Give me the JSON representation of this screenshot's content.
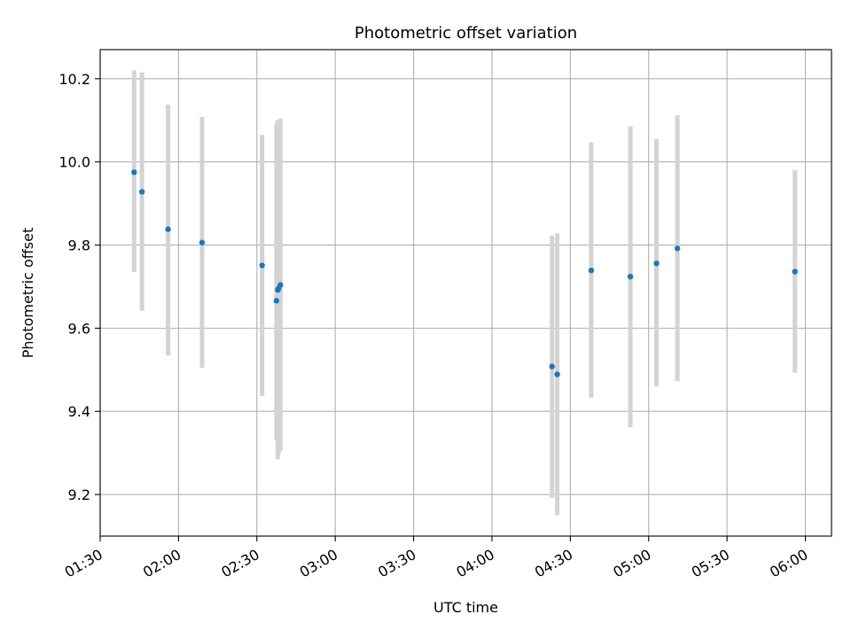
{
  "chart_data": {
    "type": "scatter",
    "title": "Photometric offset variation",
    "xlabel": "UTC time",
    "ylabel": "Photometric offset",
    "x_axis_kind": "time",
    "xlim": [
      "01:30",
      "06:10"
    ],
    "ylim": [
      9.1,
      10.27
    ],
    "grid": true,
    "marker_color": "#1f77b4",
    "errorbar_color": "#d3d3d3",
    "x_ticks": [
      "01:30",
      "02:00",
      "02:30",
      "03:00",
      "03:30",
      "04:00",
      "04:30",
      "05:00",
      "05:30",
      "06:00"
    ],
    "y_ticks": [
      9.2,
      9.4,
      9.6,
      9.8,
      10.0,
      10.2
    ],
    "y_tick_labels": [
      "9.2",
      "9.4",
      "9.6",
      "9.8",
      "10.0",
      "10.2"
    ],
    "points": [
      {
        "x": "01:43",
        "y": 9.975,
        "low": 9.735,
        "high": 10.22
      },
      {
        "x": "01:46",
        "y": 9.928,
        "low": 9.642,
        "high": 10.215
      },
      {
        "x": "01:56",
        "y": 9.838,
        "low": 9.535,
        "high": 10.138
      },
      {
        "x": "02:09",
        "y": 9.806,
        "low": 9.505,
        "high": 10.108
      },
      {
        "x": "02:32",
        "y": 9.751,
        "low": 9.437,
        "high": 10.065
      },
      {
        "x": "02:37.5",
        "y": 9.666,
        "low": 9.33,
        "high": 10.092
      },
      {
        "x": "02:38",
        "y": 9.692,
        "low": 9.285,
        "high": 10.1
      },
      {
        "x": "02:38.3",
        "y": 9.695,
        "low": 9.296,
        "high": 10.096
      },
      {
        "x": "02:39",
        "y": 9.704,
        "low": 9.305,
        "high": 10.104
      },
      {
        "x": "04:23",
        "y": 9.508,
        "low": 9.192,
        "high": 9.823
      },
      {
        "x": "04:25",
        "y": 9.489,
        "low": 9.15,
        "high": 9.828
      },
      {
        "x": "04:38",
        "y": 9.739,
        "low": 9.433,
        "high": 10.047
      },
      {
        "x": "04:53",
        "y": 9.724,
        "low": 9.362,
        "high": 10.086
      },
      {
        "x": "05:03",
        "y": 9.756,
        "low": 9.46,
        "high": 10.055
      },
      {
        "x": "05:11",
        "y": 9.792,
        "low": 9.473,
        "high": 10.112
      },
      {
        "x": "05:56",
        "y": 9.736,
        "low": 9.493,
        "high": 9.98
      }
    ]
  }
}
